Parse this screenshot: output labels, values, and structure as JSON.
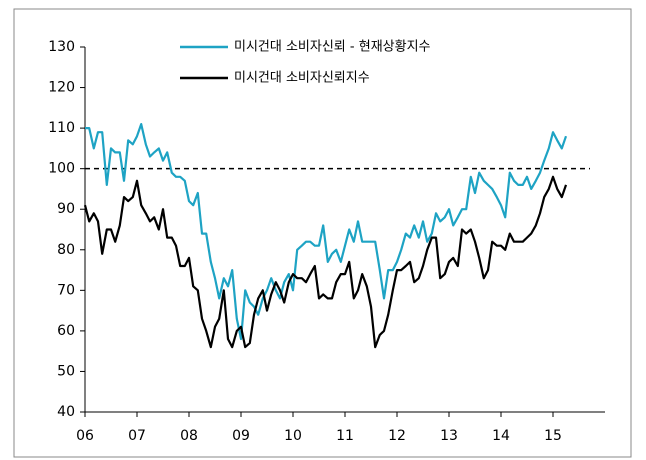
{
  "chart_data": {
    "type": "line",
    "x": [
      2006,
      2006.08,
      2006.17,
      2006.25,
      2006.33,
      2006.42,
      2006.5,
      2006.58,
      2006.67,
      2006.75,
      2006.83,
      2006.92,
      2007,
      2007.08,
      2007.17,
      2007.25,
      2007.33,
      2007.42,
      2007.5,
      2007.58,
      2007.67,
      2007.75,
      2007.83,
      2007.92,
      2008,
      2008.08,
      2008.17,
      2008.25,
      2008.33,
      2008.42,
      2008.5,
      2008.58,
      2008.67,
      2008.75,
      2008.83,
      2008.92,
      2009,
      2009.08,
      2009.17,
      2009.25,
      2009.33,
      2009.42,
      2009.5,
      2009.58,
      2009.67,
      2009.75,
      2009.83,
      2009.92,
      2010,
      2010.08,
      2010.17,
      2010.25,
      2010.33,
      2010.42,
      2010.5,
      2010.58,
      2010.67,
      2010.75,
      2010.83,
      2010.92,
      2011,
      2011.08,
      2011.17,
      2011.25,
      2011.33,
      2011.42,
      2011.5,
      2011.58,
      2011.67,
      2011.75,
      2011.83,
      2011.92,
      2012,
      2012.08,
      2012.17,
      2012.25,
      2012.33,
      2012.42,
      2012.5,
      2012.58,
      2012.67,
      2012.75,
      2012.83,
      2012.92,
      2013,
      2013.08,
      2013.17,
      2013.25,
      2013.33,
      2013.42,
      2013.5,
      2013.58,
      2013.67,
      2013.75,
      2013.83,
      2013.92,
      2014,
      2014.08,
      2014.17,
      2014.25,
      2014.33,
      2014.42,
      2014.5,
      2014.58,
      2014.67,
      2014.75,
      2014.83,
      2014.92,
      2015,
      2015.08,
      2015.17,
      2015.25
    ],
    "series": [
      {
        "name": "미시건대 소비자신뢰 - 현재상황지수",
        "color": "#1ea3c4",
        "values": [
          110,
          110,
          105,
          109,
          109,
          96,
          105,
          104,
          104,
          97,
          107,
          106,
          108,
          111,
          106,
          103,
          104,
          105,
          102,
          104,
          99,
          98,
          98,
          97,
          92,
          91,
          94,
          84,
          84,
          77,
          73,
          68,
          73,
          71,
          75,
          63,
          58,
          70,
          67,
          66,
          64,
          68,
          70,
          73,
          70,
          68,
          72,
          74,
          70,
          80,
          81,
          82,
          82,
          81,
          81,
          86,
          77,
          79,
          80,
          77,
          81,
          85,
          82,
          87,
          82,
          82,
          82,
          82,
          75,
          68,
          75,
          75,
          77,
          80,
          84,
          83,
          86,
          83,
          87,
          82,
          84,
          89,
          87,
          88,
          90,
          86,
          88,
          90,
          90,
          98,
          94,
          99,
          97,
          96,
          95,
          93,
          91,
          88,
          99,
          97,
          96,
          96,
          98,
          95,
          97,
          99,
          102,
          105,
          109,
          107,
          105,
          108
        ]
      },
      {
        "name": "미시건대 소비자신뢰지수",
        "color": "#000000",
        "values": [
          91,
          87,
          89,
          87,
          79,
          85,
          85,
          82,
          86,
          93,
          92,
          93,
          97,
          91,
          89,
          87,
          88,
          85,
          90,
          83,
          83,
          81,
          76,
          76,
          78,
          71,
          70,
          63,
          60,
          56,
          61,
          63,
          70,
          58,
          56,
          60,
          61,
          56,
          57,
          64,
          68,
          70,
          65,
          69,
          72,
          70,
          67,
          72,
          74,
          73,
          73,
          72,
          74,
          76,
          68,
          69,
          68,
          68,
          72,
          74,
          74,
          77,
          68,
          70,
          74,
          71,
          66,
          56,
          59,
          60,
          64,
          70,
          75,
          75,
          76,
          77,
          72,
          73,
          76,
          80,
          83,
          83,
          73,
          74,
          77,
          78,
          76,
          85,
          84,
          85,
          82,
          78,
          73,
          75,
          82,
          81,
          81,
          80,
          84,
          82,
          82,
          82,
          83,
          84,
          86,
          89,
          93,
          95,
          98,
          95,
          93,
          96
        ]
      }
    ],
    "xlim": [
      2006,
      2016
    ],
    "xticks": [
      {
        "value": 2006,
        "label": "06"
      },
      {
        "value": 2007,
        "label": "07"
      },
      {
        "value": 2008,
        "label": "08"
      },
      {
        "value": 2009,
        "label": "09"
      },
      {
        "value": 2010,
        "label": "10"
      },
      {
        "value": 2011,
        "label": "11"
      },
      {
        "value": 2012,
        "label": "12"
      },
      {
        "value": 2013,
        "label": "13"
      },
      {
        "value": 2014,
        "label": "14"
      },
      {
        "value": 2015,
        "label": "15"
      }
    ],
    "ylim": [
      40,
      130
    ],
    "yticks": [
      40,
      50,
      60,
      70,
      80,
      90,
      100,
      110,
      120,
      130
    ],
    "hline": 100,
    "legend": "top"
  }
}
